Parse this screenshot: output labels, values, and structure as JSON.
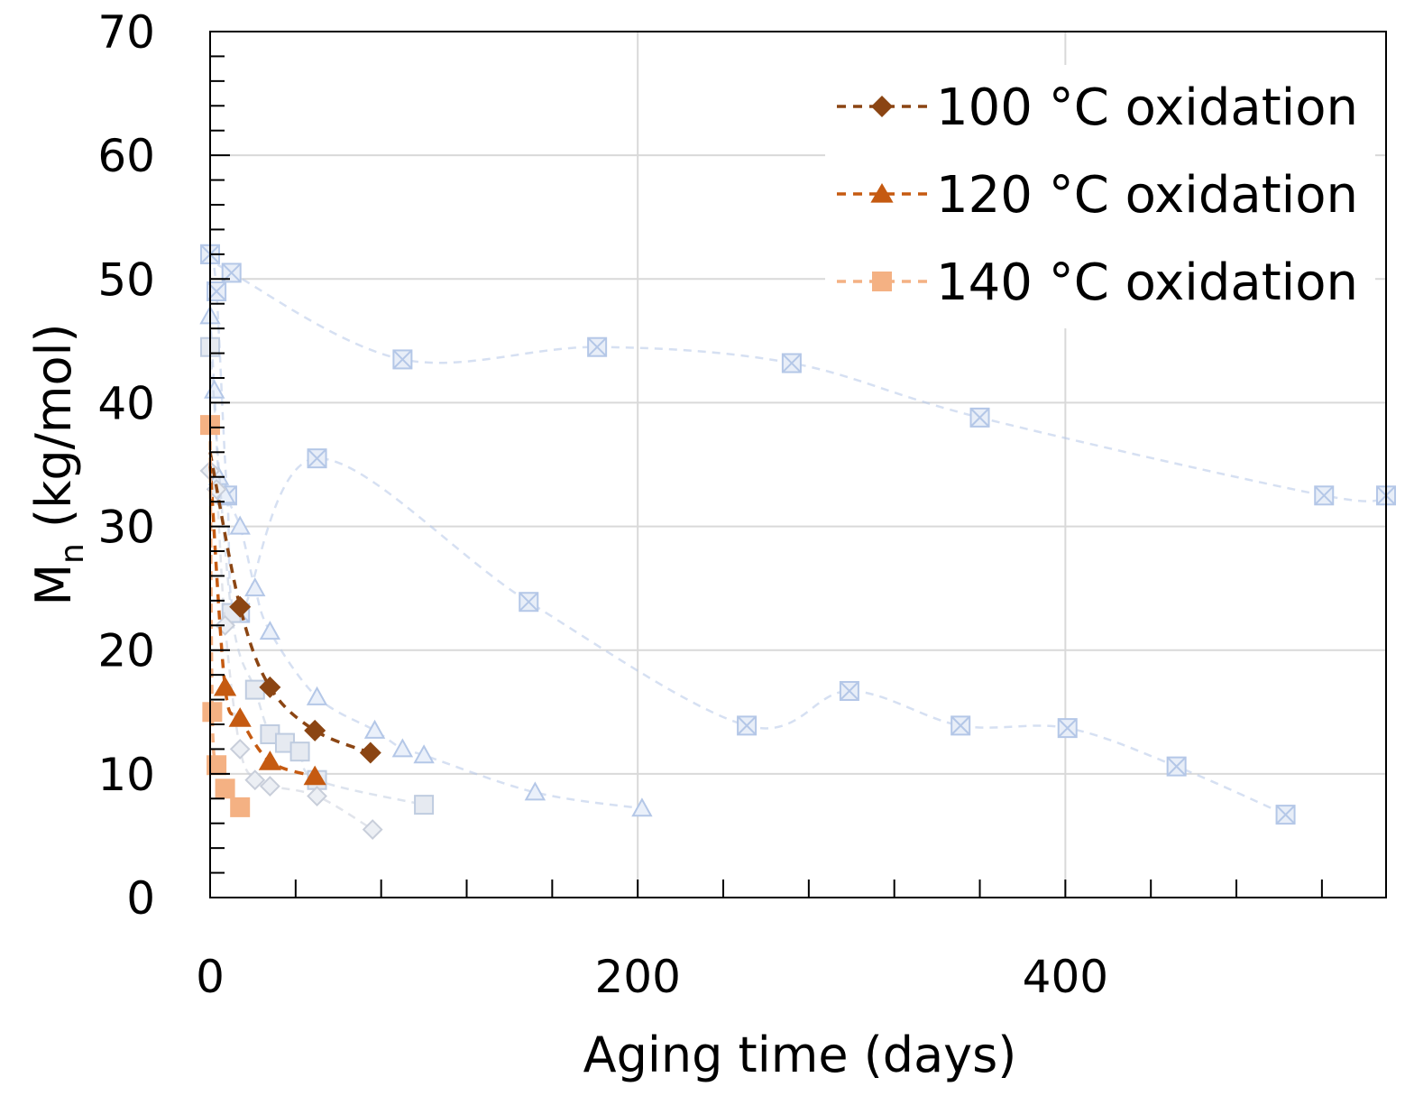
{
  "chart_data": {
    "type": "scatter",
    "xlabel": "Aging time (days)",
    "ylabel_main": "M",
    "ylabel_sub": "n",
    "ylabel_rest": " (kg/mol)",
    "xlim": [
      0,
      550
    ],
    "ylim": [
      0,
      70
    ],
    "x_ticks": [
      0,
      200,
      400
    ],
    "y_ticks": [
      0,
      10,
      20,
      30,
      40,
      50,
      60,
      70
    ],
    "x_minor_step": 40,
    "y_minor_step": 2,
    "grid": true,
    "legend_position": "top-right",
    "series": [
      {
        "name": "100 °C oxidation",
        "marker": "diamond",
        "color": "#8B4513",
        "x": [
          0,
          14,
          28,
          49,
          75
        ],
        "y": [
          36,
          23.5,
          17,
          13.5,
          11.7
        ]
      },
      {
        "name": "120 °C oxidation",
        "marker": "triangle",
        "color": "#C55A11",
        "x": [
          0,
          7,
          14,
          28,
          49
        ],
        "y": [
          35,
          17,
          14.5,
          11,
          9.8
        ]
      },
      {
        "name": "140 °C oxidation",
        "marker": "square",
        "color": "#F4B183",
        "x": [
          0,
          1,
          3,
          7,
          14
        ],
        "y": [
          38.2,
          15,
          10.7,
          8.8,
          7.3
        ]
      }
    ],
    "background_series": [
      {
        "marker": "crossbox",
        "color": "#B4C7E7",
        "x": [
          0,
          10,
          90,
          181,
          272,
          360,
          521,
          550
        ],
        "y": [
          52,
          50.5,
          43.5,
          44.5,
          43.2,
          38.8,
          32.5,
          32.5
        ]
      },
      {
        "marker": "crossbox",
        "color": "#B4C7E7",
        "x": [
          0,
          3,
          8,
          14,
          50,
          149,
          251,
          299,
          351,
          401,
          452,
          503
        ],
        "y": [
          52,
          49,
          32.5,
          23,
          35.5,
          23.9,
          13.9,
          16.7,
          13.9,
          13.7,
          10.6,
          6.7
        ]
      },
      {
        "marker": "triangle-open",
        "color": "#B4C7E7",
        "x": [
          0,
          2,
          4,
          7,
          14,
          21,
          28,
          50,
          77,
          90,
          100,
          152,
          202
        ],
        "y": [
          47,
          41,
          34,
          32.5,
          30,
          25,
          21.5,
          16.2,
          13.5,
          12,
          11.5,
          8.5,
          7.2
        ]
      },
      {
        "marker": "box",
        "color": "#BFCCE0",
        "x": [
          0,
          10,
          21,
          28,
          35,
          42,
          50,
          100
        ],
        "y": [
          44.5,
          23,
          16.8,
          13.2,
          12.5,
          11.8,
          9.5,
          7.5
        ]
      },
      {
        "marker": "diamond-open",
        "color": "#C8CEDA",
        "x": [
          0,
          3,
          7,
          14,
          21,
          28,
          50,
          76
        ],
        "y": [
          34.5,
          33,
          22,
          12,
          9.5,
          9,
          8.2,
          5.5
        ]
      }
    ]
  }
}
